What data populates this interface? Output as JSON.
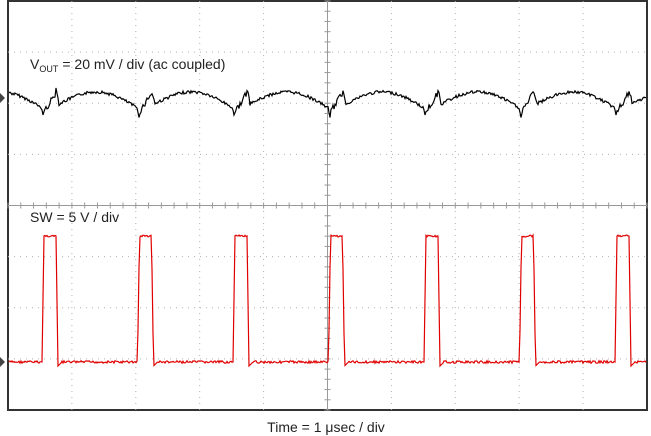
{
  "labels": {
    "vout": {
      "symbol": "V",
      "subscript": "OUT",
      "text": "= 20 mV / div (ac coupled)"
    },
    "sw": "SW = 5 V / div",
    "time": "Time = 1 μsec / div"
  }
}
